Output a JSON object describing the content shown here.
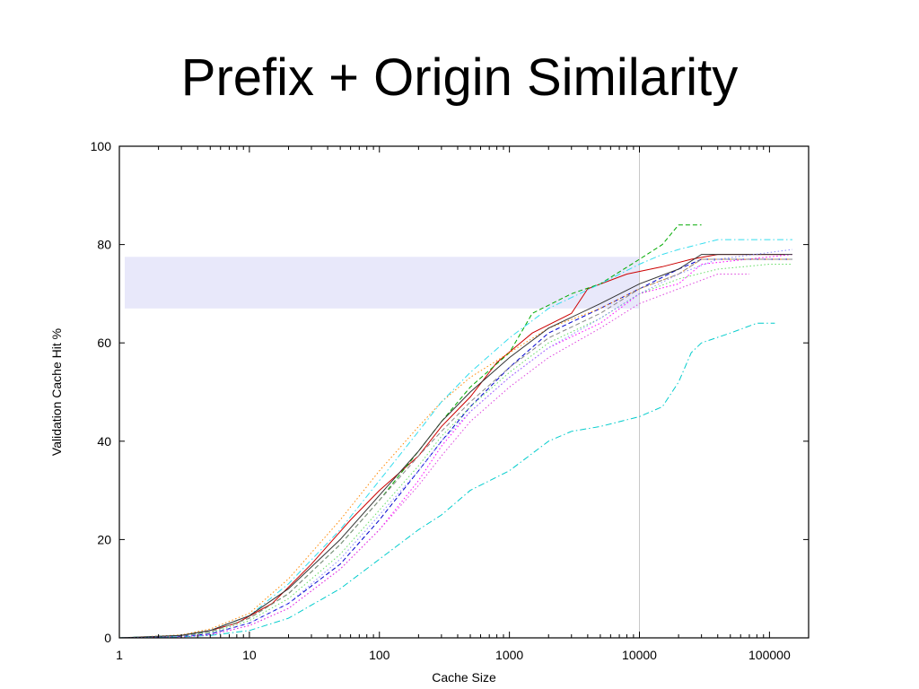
{
  "slide": {
    "title": "Prefix + Origin Similarity"
  },
  "chart_data": {
    "type": "line",
    "title": "Prefix + Origin Similarity",
    "xlabel": "Cache Size",
    "ylabel": "Validation Cache Hit %",
    "xscale": "log",
    "xlim": [
      1,
      200000
    ],
    "ylim": [
      0,
      100
    ],
    "x_ticks": [
      1,
      10,
      100,
      1000,
      10000,
      100000
    ],
    "x_tick_labels": [
      "1",
      "10",
      "100",
      "1000",
      "10000",
      "100000"
    ],
    "y_ticks": [
      0,
      20,
      40,
      60,
      80,
      100
    ],
    "y_tick_labels": [
      "0",
      "20",
      "40",
      "60",
      "80",
      "100"
    ],
    "grid": false,
    "legend": "none",
    "highlight_band": {
      "x_range": [
        1.1,
        10000
      ],
      "y_range": [
        67,
        77.5
      ],
      "color": "#e8e8fa"
    },
    "reference_line": {
      "x": 10000,
      "color": "#c8c8c8"
    },
    "series": [
      {
        "color": "#cc0000",
        "dash": "solid",
        "x": [
          1,
          2,
          3,
          5,
          8,
          15,
          30,
          60,
          100,
          200,
          300,
          500,
          800,
          1500,
          3000,
          4000,
          8000,
          15000,
          25000,
          40000,
          130000
        ],
        "y": [
          0,
          0.2,
          0.5,
          1.5,
          3,
          7,
          15,
          24,
          30,
          37,
          43,
          49,
          56,
          62,
          66,
          71,
          74,
          75.5,
          77,
          78,
          78
        ]
      },
      {
        "color": "#00aa00",
        "dash": "dash",
        "x": [
          1,
          3,
          5,
          10,
          20,
          50,
          100,
          200,
          300,
          500,
          1000,
          1500,
          3000,
          5000,
          10000,
          15000,
          20000,
          30000
        ],
        "y": [
          0,
          0.5,
          1.2,
          4,
          9,
          19,
          28,
          38,
          44,
          51,
          58,
          66,
          70,
          72,
          77,
          80,
          84,
          84
        ]
      },
      {
        "color": "#0000cc",
        "dash": "dash",
        "x": [
          1,
          3,
          5,
          10,
          20,
          50,
          100,
          200,
          300,
          500,
          1000,
          2000,
          5000,
          10000,
          20000,
          30000,
          150000
        ],
        "y": [
          0,
          0.3,
          0.8,
          3,
          7,
          15,
          24,
          34,
          40,
          47,
          55,
          62,
          67,
          71,
          75,
          77,
          77
        ]
      },
      {
        "color": "#ff00ff",
        "dash": "dot",
        "x": [
          1,
          3,
          5,
          10,
          20,
          50,
          100,
          200,
          300,
          500,
          1000,
          2000,
          5000,
          10000,
          20000,
          30000,
          150000
        ],
        "y": [
          0,
          0.2,
          0.6,
          2.5,
          6,
          14,
          22,
          32,
          39,
          46,
          53,
          59,
          64,
          70,
          72,
          76,
          78
        ]
      },
      {
        "color": "#00cccc",
        "dash": "dashdot",
        "x": [
          1,
          3,
          5,
          10,
          20,
          50,
          100,
          200,
          300,
          500,
          1000,
          2000,
          3000,
          5000,
          10000,
          15000,
          20000,
          25000,
          30000,
          50000,
          80000,
          110000
        ],
        "y": [
          0,
          0.2,
          0.5,
          1.5,
          4,
          10,
          16,
          22,
          25,
          30,
          34,
          40,
          42,
          43,
          45,
          47,
          52,
          58,
          60,
          62,
          64,
          64
        ]
      },
      {
        "color": "#ff8800",
        "dash": "dot",
        "x": [
          1,
          3,
          5,
          10,
          20,
          50,
          100,
          200,
          300,
          500,
          1000,
          2000,
          5000,
          10000,
          20000,
          30000,
          150000
        ],
        "y": [
          0,
          0.6,
          1.8,
          5,
          12,
          24,
          34,
          43,
          48,
          53,
          58,
          63,
          67,
          71,
          74,
          77,
          77
        ]
      },
      {
        "color": "#888888",
        "dash": "dash",
        "x": [
          1,
          3,
          5,
          10,
          20,
          50,
          100,
          200,
          300,
          500,
          1000,
          2000,
          5000,
          10000,
          20000,
          30000,
          150000
        ],
        "y": [
          0,
          0.4,
          1.2,
          4,
          9,
          19,
          28,
          37,
          42,
          48,
          55,
          61,
          66,
          71,
          74,
          77,
          77
        ]
      },
      {
        "color": "#33ddee",
        "dash": "dashdot",
        "x": [
          1,
          3,
          5,
          10,
          20,
          50,
          100,
          200,
          300,
          500,
          1000,
          2000,
          5000,
          10000,
          15000,
          20000,
          40000,
          150000
        ],
        "y": [
          0,
          0.5,
          1.5,
          4.5,
          11,
          22,
          32,
          42,
          48,
          54,
          61,
          67,
          72,
          76,
          78,
          79,
          81,
          81
        ]
      },
      {
        "color": "#66dd66",
        "dash": "dot",
        "x": [
          1,
          3,
          5,
          10,
          20,
          50,
          100,
          200,
          300,
          500,
          1000,
          2000,
          5000,
          10000,
          20000,
          40000,
          100000,
          150000
        ],
        "y": [
          0,
          0.3,
          1,
          3.5,
          8,
          17,
          26,
          35,
          41,
          47,
          54,
          60,
          65,
          70,
          73,
          75,
          76,
          76
        ]
      },
      {
        "color": "#dd44dd",
        "dash": "dot",
        "x": [
          1,
          3,
          5,
          10,
          20,
          50,
          100,
          200,
          300,
          500,
          1000,
          2000,
          5000,
          10000,
          20000,
          40000,
          70000
        ],
        "y": [
          0,
          0.2,
          0.6,
          2.5,
          6,
          14,
          22,
          31,
          37,
          44,
          51,
          57,
          63,
          68,
          71,
          74,
          74
        ]
      },
      {
        "color": "#333333",
        "dash": "solid",
        "x": [
          1,
          3,
          5,
          10,
          20,
          50,
          100,
          200,
          300,
          500,
          1000,
          2000,
          5000,
          10000,
          20000,
          30000,
          150000
        ],
        "y": [
          0,
          0.5,
          1.5,
          4.5,
          10,
          20,
          29,
          38,
          44,
          50,
          57,
          63,
          68,
          72,
          75,
          78,
          78
        ]
      },
      {
        "color": "#8888ff",
        "dash": "dot",
        "x": [
          1,
          3,
          5,
          10,
          20,
          50,
          100,
          200,
          300,
          500,
          1000,
          2000,
          5000,
          10000,
          20000,
          40000,
          150000
        ],
        "y": [
          0,
          0.3,
          0.9,
          3,
          7,
          16,
          25,
          34,
          40,
          46,
          53,
          59,
          65,
          70,
          74,
          77,
          79
        ]
      }
    ]
  }
}
